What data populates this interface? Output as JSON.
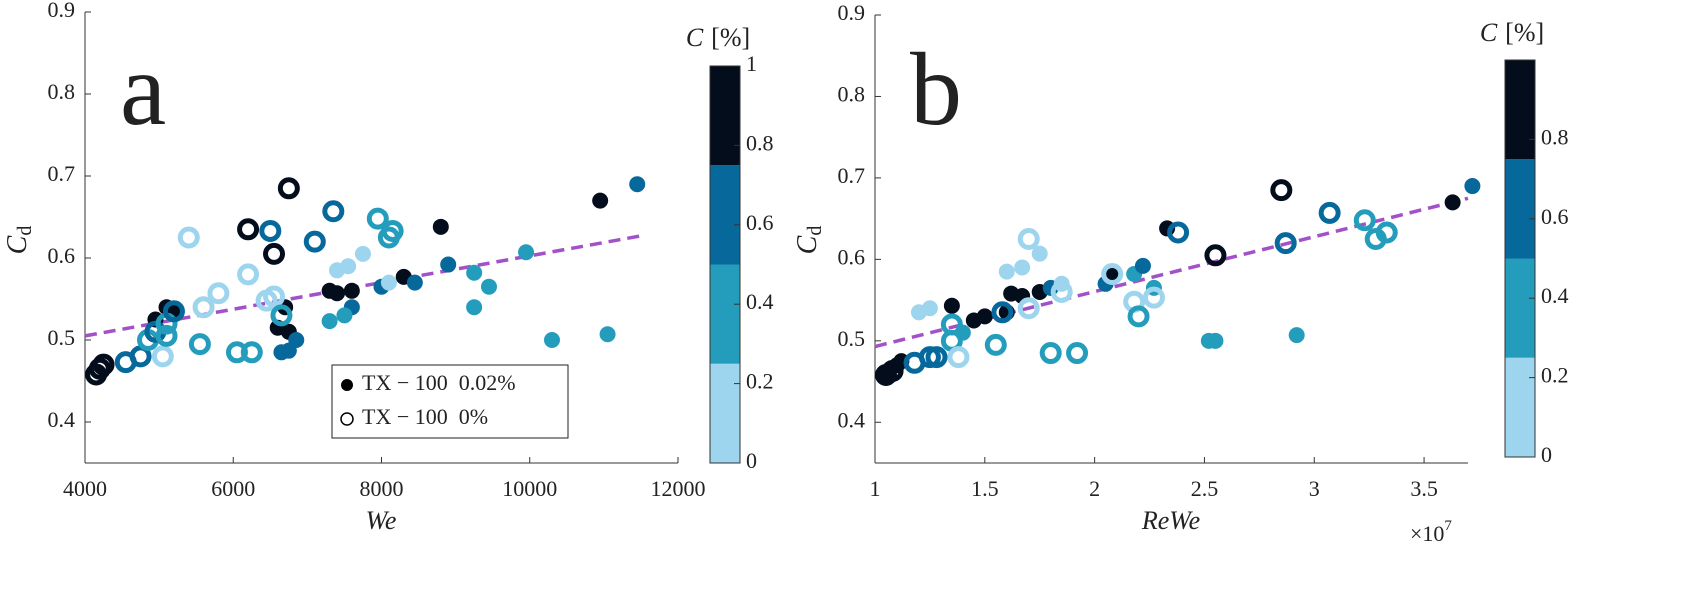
{
  "chart_data": [
    {
      "type": "scatter",
      "annotation": "a",
      "xlabel": "We",
      "ylabel": {
        "text": "C",
        "sub": "d"
      },
      "xlim": [
        4000,
        12000
      ],
      "ylim": [
        0.35,
        0.9
      ],
      "xticks": [
        4000,
        6000,
        8000,
        10000,
        12000
      ],
      "yticks": [
        0.4,
        0.5,
        0.6,
        0.7,
        0.8,
        0.9
      ],
      "legend": "lower-center",
      "colorbar": {
        "label": {
          "symbol": "C",
          "unit": "[%]"
        },
        "clim": [
          0,
          1
        ],
        "ticks": [
          0,
          0.2,
          0.4,
          0.6,
          0.8,
          1
        ],
        "colors": [
          "#9dd5ee",
          "#249dbd",
          "#07689c",
          "#030d1b"
        ]
      },
      "fit": {
        "x": [
          4000,
          11500
        ],
        "values": [
          0.505,
          0.627
        ],
        "color": "#a251c8"
      },
      "series": [
        {
          "name": "TX − 100  0.02%",
          "marker": "filled",
          "x": [
            4950,
            5100,
            5200,
            6700,
            6600,
            6750,
            6650,
            6750,
            6850,
            7300,
            7400,
            7600,
            7600,
            7500,
            7300,
            7400,
            7550,
            7750,
            8000,
            8300,
            8450,
            8800,
            8900,
            9250,
            9250,
            9450,
            9950,
            10300,
            10950,
            11050,
            11450,
            8100
          ],
          "values": [
            0.525,
            0.54,
            0.535,
            0.54,
            0.515,
            0.51,
            0.485,
            0.487,
            0.5,
            0.56,
            0.557,
            0.56,
            0.54,
            0.53,
            0.523,
            0.585,
            0.59,
            0.605,
            0.565,
            0.577,
            0.57,
            0.638,
            0.592,
            0.582,
            0.54,
            0.565,
            0.607,
            0.5,
            0.67,
            0.507,
            0.69,
            0.57
          ],
          "c": [
            0.9,
            0.9,
            0.9,
            0.9,
            0.9,
            0.9,
            0.6,
            0.6,
            0.6,
            0.9,
            0.9,
            0.9,
            0.6,
            0.4,
            0.4,
            0.1,
            0.1,
            0.1,
            0.6,
            0.9,
            0.6,
            0.9,
            0.6,
            0.4,
            0.4,
            0.4,
            0.4,
            0.4,
            0.9,
            0.4,
            0.6,
            0.1
          ]
        },
        {
          "name": "TX − 100  0%",
          "marker": "open",
          "x": [
            4150,
            4200,
            4250,
            4550,
            4750,
            4850,
            4950,
            5050,
            5100,
            5100,
            5200,
            5400,
            5550,
            5600,
            5800,
            6050,
            6200,
            6250,
            6200,
            6450,
            6550,
            6500,
            6550,
            6650,
            6750,
            7100,
            7350,
            7950,
            8100,
            8150
          ],
          "values": [
            0.458,
            0.465,
            0.47,
            0.473,
            0.48,
            0.5,
            0.51,
            0.48,
            0.505,
            0.52,
            0.535,
            0.625,
            0.495,
            0.54,
            0.557,
            0.485,
            0.58,
            0.485,
            0.635,
            0.548,
            0.553,
            0.633,
            0.605,
            0.53,
            0.685,
            0.62,
            0.657,
            0.648,
            0.625,
            0.633
          ],
          "c": [
            0.9,
            0.9,
            0.9,
            0.6,
            0.6,
            0.4,
            0.6,
            0.1,
            0.4,
            0.4,
            0.6,
            0.1,
            0.4,
            0.1,
            0.1,
            0.4,
            0.1,
            0.4,
            0.9,
            0.1,
            0.1,
            0.6,
            0.9,
            0.4,
            0.9,
            0.6,
            0.6,
            0.4,
            0.4,
            0.4
          ]
        }
      ]
    },
    {
      "type": "scatter",
      "annotation": "b",
      "xlabel": "ReWe",
      "ylabel": {
        "text": "C",
        "sub": "d"
      },
      "x_multiplier": {
        "base": "×10",
        "exp": "7"
      },
      "xlim": [
        1,
        3.7
      ],
      "ylim": [
        0.35,
        0.9
      ],
      "xticks": [
        1,
        1.5,
        2,
        2.5,
        3,
        3.5
      ],
      "yticks": [
        0.4,
        0.5,
        0.6,
        0.7,
        0.8,
        0.9
      ],
      "colorbar": {
        "label": {
          "symbol": "C",
          "unit": "[%]"
        },
        "clim": [
          0,
          1
        ],
        "ticks": [
          0,
          0.2,
          0.4,
          0.6,
          0.8
        ],
        "colors": [
          "#9dd5ee",
          "#249dbd",
          "#07689c",
          "#030d1b"
        ]
      },
      "fit": {
        "x": [
          1,
          3.7
        ],
        "values": [
          0.493,
          0.675
        ],
        "color": "#a251c8"
      },
      "series": [
        {
          "marker": "filled",
          "x": [
            1.05,
            1.1,
            1.12,
            1.2,
            1.25,
            1.35,
            1.45,
            1.5,
            1.6,
            1.62,
            1.67,
            1.6,
            1.67,
            1.75,
            1.75,
            1.8,
            1.85,
            2.05,
            2.08,
            2.18,
            2.22,
            2.27,
            2.33,
            2.52,
            2.55,
            2.92,
            3.63,
            3.72,
            1.4
          ],
          "values": [
            0.46,
            0.47,
            0.475,
            0.535,
            0.54,
            0.543,
            0.525,
            0.53,
            0.535,
            0.558,
            0.555,
            0.585,
            0.59,
            0.607,
            0.56,
            0.565,
            0.57,
            0.57,
            0.58,
            0.582,
            0.592,
            0.565,
            0.638,
            0.5,
            0.5,
            0.507,
            0.67,
            0.69,
            0.51
          ],
          "c": [
            0.9,
            0.9,
            0.9,
            0.1,
            0.1,
            0.9,
            0.9,
            0.9,
            0.9,
            0.9,
            0.9,
            0.1,
            0.1,
            0.1,
            0.9,
            0.6,
            0.1,
            0.6,
            0.9,
            0.4,
            0.6,
            0.4,
            0.9,
            0.4,
            0.4,
            0.4,
            0.9,
            0.6,
            0.4
          ]
        },
        {
          "marker": "open",
          "x": [
            1.05,
            1.08,
            1.18,
            1.25,
            1.28,
            1.35,
            1.35,
            1.38,
            1.55,
            1.58,
            1.7,
            1.7,
            1.8,
            1.85,
            1.92,
            2.08,
            2.18,
            2.2,
            2.27,
            2.38,
            2.55,
            2.85,
            2.87,
            3.07,
            3.23,
            3.28,
            3.33
          ],
          "values": [
            0.458,
            0.463,
            0.473,
            0.48,
            0.48,
            0.5,
            0.52,
            0.48,
            0.495,
            0.535,
            0.625,
            0.54,
            0.485,
            0.56,
            0.485,
            0.582,
            0.548,
            0.53,
            0.553,
            0.633,
            0.605,
            0.685,
            0.62,
            0.657,
            0.648,
            0.625,
            0.633
          ],
          "c": [
            0.9,
            0.9,
            0.6,
            0.6,
            0.6,
            0.4,
            0.4,
            0.1,
            0.4,
            0.6,
            0.1,
            0.1,
            0.4,
            0.1,
            0.4,
            0.1,
            0.1,
            0.4,
            0.1,
            0.6,
            0.9,
            0.9,
            0.6,
            0.6,
            0.4,
            0.4,
            0.4
          ]
        }
      ]
    }
  ]
}
